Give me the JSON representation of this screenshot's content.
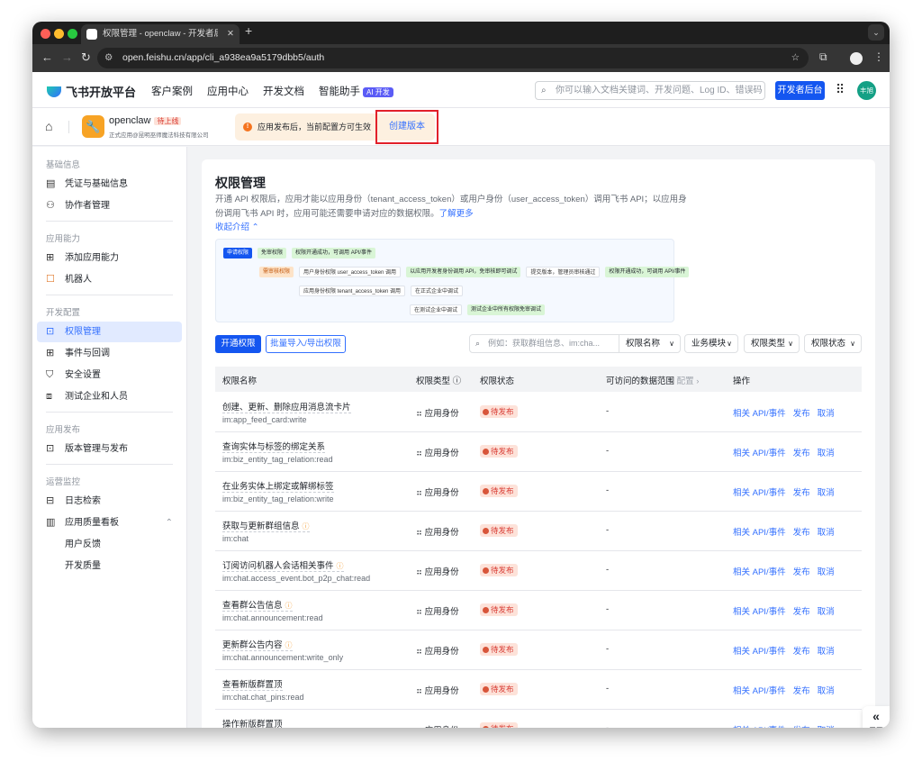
{
  "browser": {
    "tab_title": "权限管理 - openclaw - 开发者后台",
    "url": "open.feishu.cn/app/cli_a938ea9a5179dbb5/auth"
  },
  "header": {
    "logo": "飞书开放平台",
    "nav": [
      "客户案例",
      "应用中心",
      "开发文档",
      "智能助手"
    ],
    "ai_tag": "AI 开发",
    "search_placeholder": "你可以输入文档关键词、开发问题、Log ID、错误码",
    "dev_button": "开发者后台",
    "avatar": "丰旭"
  },
  "app": {
    "name": "openclaw",
    "status_tag": "待上线",
    "subtitle": "正式应用@昆明巫师魔法科技有限公司",
    "notice": "应用发布后，当前配置方可生效",
    "create_version": "创建版本"
  },
  "sidebar": {
    "groups": [
      {
        "label": "基础信息",
        "items": [
          {
            "label": "凭证与基础信息",
            "icon": "credential-icon"
          },
          {
            "label": "协作者管理",
            "icon": "user-add-icon"
          }
        ]
      },
      {
        "label": "应用能力",
        "items": [
          {
            "label": "添加应用能力",
            "icon": "apps-add-icon"
          },
          {
            "label": "机器人",
            "icon": "robot-icon"
          }
        ]
      },
      {
        "label": "开发配置",
        "items": [
          {
            "label": "权限管理",
            "icon": "permission-icon",
            "active": true
          },
          {
            "label": "事件与回调",
            "icon": "event-icon"
          },
          {
            "label": "安全设置",
            "icon": "shield-icon"
          },
          {
            "label": "测试企业和人员",
            "icon": "test-icon"
          }
        ]
      },
      {
        "label": "应用发布",
        "items": [
          {
            "label": "版本管理与发布",
            "icon": "upload-icon"
          }
        ]
      },
      {
        "label": "运营监控",
        "items": [
          {
            "label": "日志检索",
            "icon": "log-search-icon"
          },
          {
            "label": "应用质量看板",
            "icon": "chart-icon",
            "sub": [
              "用户反馈",
              "开发质量"
            ]
          }
        ]
      }
    ]
  },
  "main": {
    "title": "权限管理",
    "desc": "开通 API 权限后，应用才能以应用身份（tenant_access_token）或用户身份（user_access_token）调用飞书 API；以应用身份调用飞书 API 时，应用可能还需要申请对应的数据权限。",
    "learn_more": "了解更多",
    "collapse": "收起介绍",
    "diagram": {
      "apply": "申请权限",
      "free": "免审权限",
      "free_result": "权限开通成功，可调用 API/事件",
      "review": "需审核权限",
      "user_perm": "用户身份权限 user_access_token 调用",
      "user_debug": "以应用开发者身份调用 API，免审核即可调试",
      "submit": "提交版本，管理员审核通过",
      "final": "权限开通成功，可调用 API/事件",
      "app_perm": "应用身份权限 tenant_access_token 调用",
      "prod_debug": "在正式企业中调试",
      "test_debug": "在测试企业中调试",
      "test_result": "测试企业中所有权限免审调试"
    },
    "open_btn": "开通权限",
    "batch_btn": "批量导入/导出权限",
    "filter_placeholder": "例如：获取群组信息、im:cha...",
    "filters": [
      "权限名称",
      "业务模块",
      "权限类型",
      "权限状态"
    ],
    "columns": [
      "权限名称",
      "权限类型",
      "权限状态",
      "可访问的数据范围",
      "配置",
      "操作"
    ],
    "rows": [
      {
        "name": "创建、更新、删除应用消息流卡片",
        "code": "im:app_feed_card:write",
        "info": false
      },
      {
        "name": "查询实体与标签的绑定关系",
        "code": "im:biz_entity_tag_relation:read",
        "info": false
      },
      {
        "name": "在业务实体上绑定或解绑标签",
        "code": "im:biz_entity_tag_relation:write",
        "info": false
      },
      {
        "name": "获取与更新群组信息",
        "code": "im:chat",
        "info": true
      },
      {
        "name": "订阅访问机器人会话相关事件",
        "code": "im:chat.access_event.bot_p2p_chat:read",
        "info": true
      },
      {
        "name": "查看群公告信息",
        "code": "im:chat.announcement:read",
        "info": true
      },
      {
        "name": "更新群公告内容",
        "code": "im:chat.announcement:write_only",
        "info": true
      },
      {
        "name": "查看新版群置顶",
        "code": "im:chat.chat_pins:read",
        "info": false
      },
      {
        "name": "操作新版群置顶",
        "code": "",
        "info": false
      }
    ],
    "row_type": "应用身份",
    "row_status": "待发布",
    "row_scope": "-",
    "row_actions": [
      "相关 API/事件",
      "发布",
      "取消"
    ]
  },
  "expand_label": "展开"
}
